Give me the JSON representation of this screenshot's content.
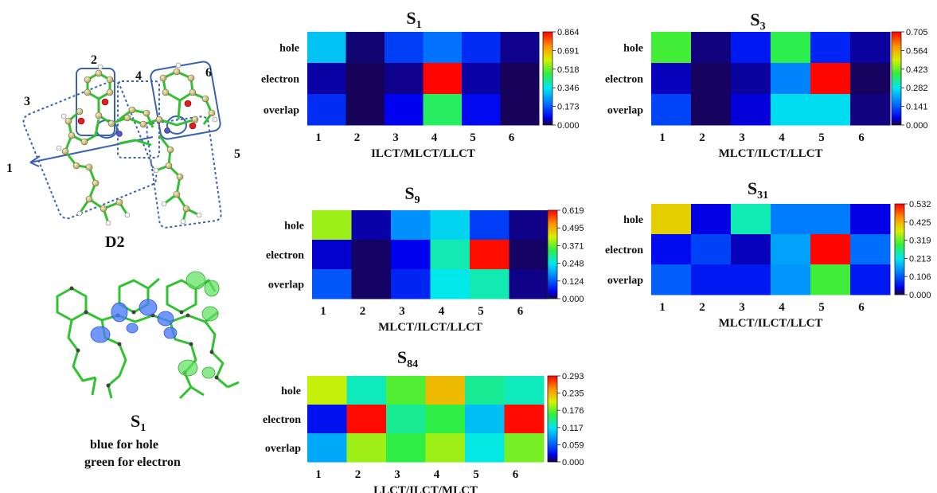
{
  "molecule": {
    "label": "D2",
    "fragment_labels": [
      "1",
      "2",
      "3",
      "4",
      "5",
      "6"
    ],
    "density_state": "S",
    "density_state_sub": "1",
    "legend_line1": "blue for hole",
    "legend_line2": "green for electron",
    "colors": {
      "hole": "#4a7bff",
      "electron": "#5fe05f",
      "bond": "#30c030",
      "box": "#3a62b0"
    }
  },
  "chart_data": [
    {
      "type": "heatmap",
      "title": "S",
      "title_sub": "1",
      "xlabel": "ILCT/MLCT/LLCT",
      "rows": [
        "hole",
        "electron",
        "overlap"
      ],
      "columns": [
        "1",
        "2",
        "3",
        "4",
        "5",
        "6"
      ],
      "values": [
        [
          0.3,
          0.02,
          0.14,
          0.2,
          0.12,
          0.03
        ],
        [
          0.04,
          0.01,
          0.03,
          0.86,
          0.04,
          0.01
        ],
        [
          0.12,
          0.01,
          0.07,
          0.45,
          0.08,
          0.01
        ]
      ],
      "colorbar_ticks": [
        "0.864",
        "0.691",
        "0.518",
        "0.346",
        "0.173",
        "0.000"
      ],
      "vmin": 0.0,
      "vmax": 0.864
    },
    {
      "type": "heatmap",
      "title": "S",
      "title_sub": "3",
      "xlabel": "MLCT/ILCT/LLCT",
      "rows": [
        "hole",
        "electron",
        "overlap"
      ],
      "columns": [
        "1",
        "2",
        "3",
        "4",
        "5",
        "6"
      ],
      "values": [
        [
          0.4,
          0.02,
          0.08,
          0.38,
          0.09,
          0.03
        ],
        [
          0.04,
          0.01,
          0.03,
          0.18,
          0.7,
          0.01
        ],
        [
          0.12,
          0.01,
          0.05,
          0.27,
          0.27,
          0.02
        ]
      ],
      "colorbar_ticks": [
        "0.705",
        "0.564",
        "0.423",
        "0.282",
        "0.141",
        "0.000"
      ],
      "vmin": 0.0,
      "vmax": 0.705
    },
    {
      "type": "heatmap",
      "title": "S",
      "title_sub": "9",
      "xlabel": "MLCT/ILCT/LLCT",
      "rows": [
        "hole",
        "electron",
        "overlap"
      ],
      "columns": [
        "1",
        "2",
        "3",
        "4",
        "5",
        "6"
      ],
      "values": [
        [
          0.4,
          0.03,
          0.17,
          0.23,
          0.1,
          0.02
        ],
        [
          0.04,
          0.01,
          0.05,
          0.28,
          0.61,
          0.01
        ],
        [
          0.12,
          0.01,
          0.08,
          0.25,
          0.28,
          0.02
        ]
      ],
      "colorbar_ticks": [
        "0.619",
        "0.495",
        "0.371",
        "0.248",
        "0.124",
        "0.000"
      ],
      "vmin": 0.0,
      "vmax": 0.619
    },
    {
      "type": "heatmap",
      "title": "S",
      "title_sub": "31",
      "xlabel": "MLCT/ILCT/LLCT",
      "rows": [
        "hole",
        "electron",
        "overlap"
      ],
      "columns": [
        "1",
        "2",
        "3",
        "4",
        "5",
        "6"
      ],
      "values": [
        [
          0.4,
          0.04,
          0.24,
          0.13,
          0.13,
          0.04
        ],
        [
          0.05,
          0.09,
          0.03,
          0.16,
          0.53,
          0.12
        ],
        [
          0.11,
          0.06,
          0.06,
          0.15,
          0.3,
          0.06
        ]
      ],
      "colorbar_ticks": [
        "0.532",
        "0.425",
        "0.319",
        "0.213",
        "0.106",
        "0.000"
      ],
      "vmin": 0.0,
      "vmax": 0.532
    },
    {
      "type": "heatmap",
      "title": "S",
      "title_sub": "84",
      "xlabel": "LLCT/ILCT/MLCT",
      "rows": [
        "hole",
        "electron",
        "overlap"
      ],
      "columns": [
        "1",
        "2",
        "3",
        "4",
        "5",
        "6"
      ],
      "values": [
        [
          0.2,
          0.13,
          0.17,
          0.23,
          0.14,
          0.13
        ],
        [
          0.03,
          0.29,
          0.14,
          0.16,
          0.1,
          0.29
        ],
        [
          0.09,
          0.19,
          0.16,
          0.19,
          0.12,
          0.18
        ]
      ],
      "colorbar_ticks": [
        "0.293",
        "0.235",
        "0.176",
        "0.117",
        "0.059",
        "0.000"
      ],
      "vmin": 0.0,
      "vmax": 0.293
    }
  ]
}
